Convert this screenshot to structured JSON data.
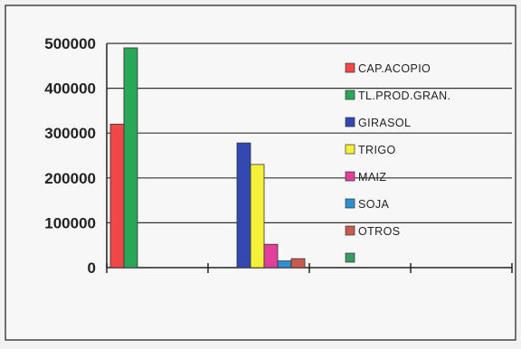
{
  "chart_data": {
    "type": "bar",
    "title": "",
    "xlabel": "",
    "ylabel": "",
    "ylim": [
      0,
      500000
    ],
    "yticks": [
      "500000",
      "400000",
      "300000",
      "200000",
      "100000",
      "0"
    ],
    "grid": "horizontal",
    "legend_position": "right",
    "series": [
      {
        "name": "CAP.ACOPIO",
        "color": "#f04848",
        "values": [
          320000,
          null,
          null
        ]
      },
      {
        "name": "TL.PROD.GRAN.",
        "color": "#2aa85a",
        "values": [
          490000,
          null,
          null
        ]
      },
      {
        "name": "GIRASOL",
        "color": "#3448b4",
        "values": [
          null,
          278000,
          null
        ]
      },
      {
        "name": "TRIGO",
        "color": "#f5f03a",
        "values": [
          null,
          230000,
          null
        ]
      },
      {
        "name": "MAIZ",
        "color": "#e0409a",
        "values": [
          null,
          52000,
          null
        ]
      },
      {
        "name": "SOJA",
        "color": "#2f8fd0",
        "values": [
          null,
          15000,
          null
        ]
      },
      {
        "name": "OTROS",
        "color": "#c85a4e",
        "values": [
          null,
          20000,
          null
        ]
      },
      {
        "name": "",
        "color": "#3a9a64",
        "values": [
          null,
          null,
          null
        ]
      }
    ]
  }
}
